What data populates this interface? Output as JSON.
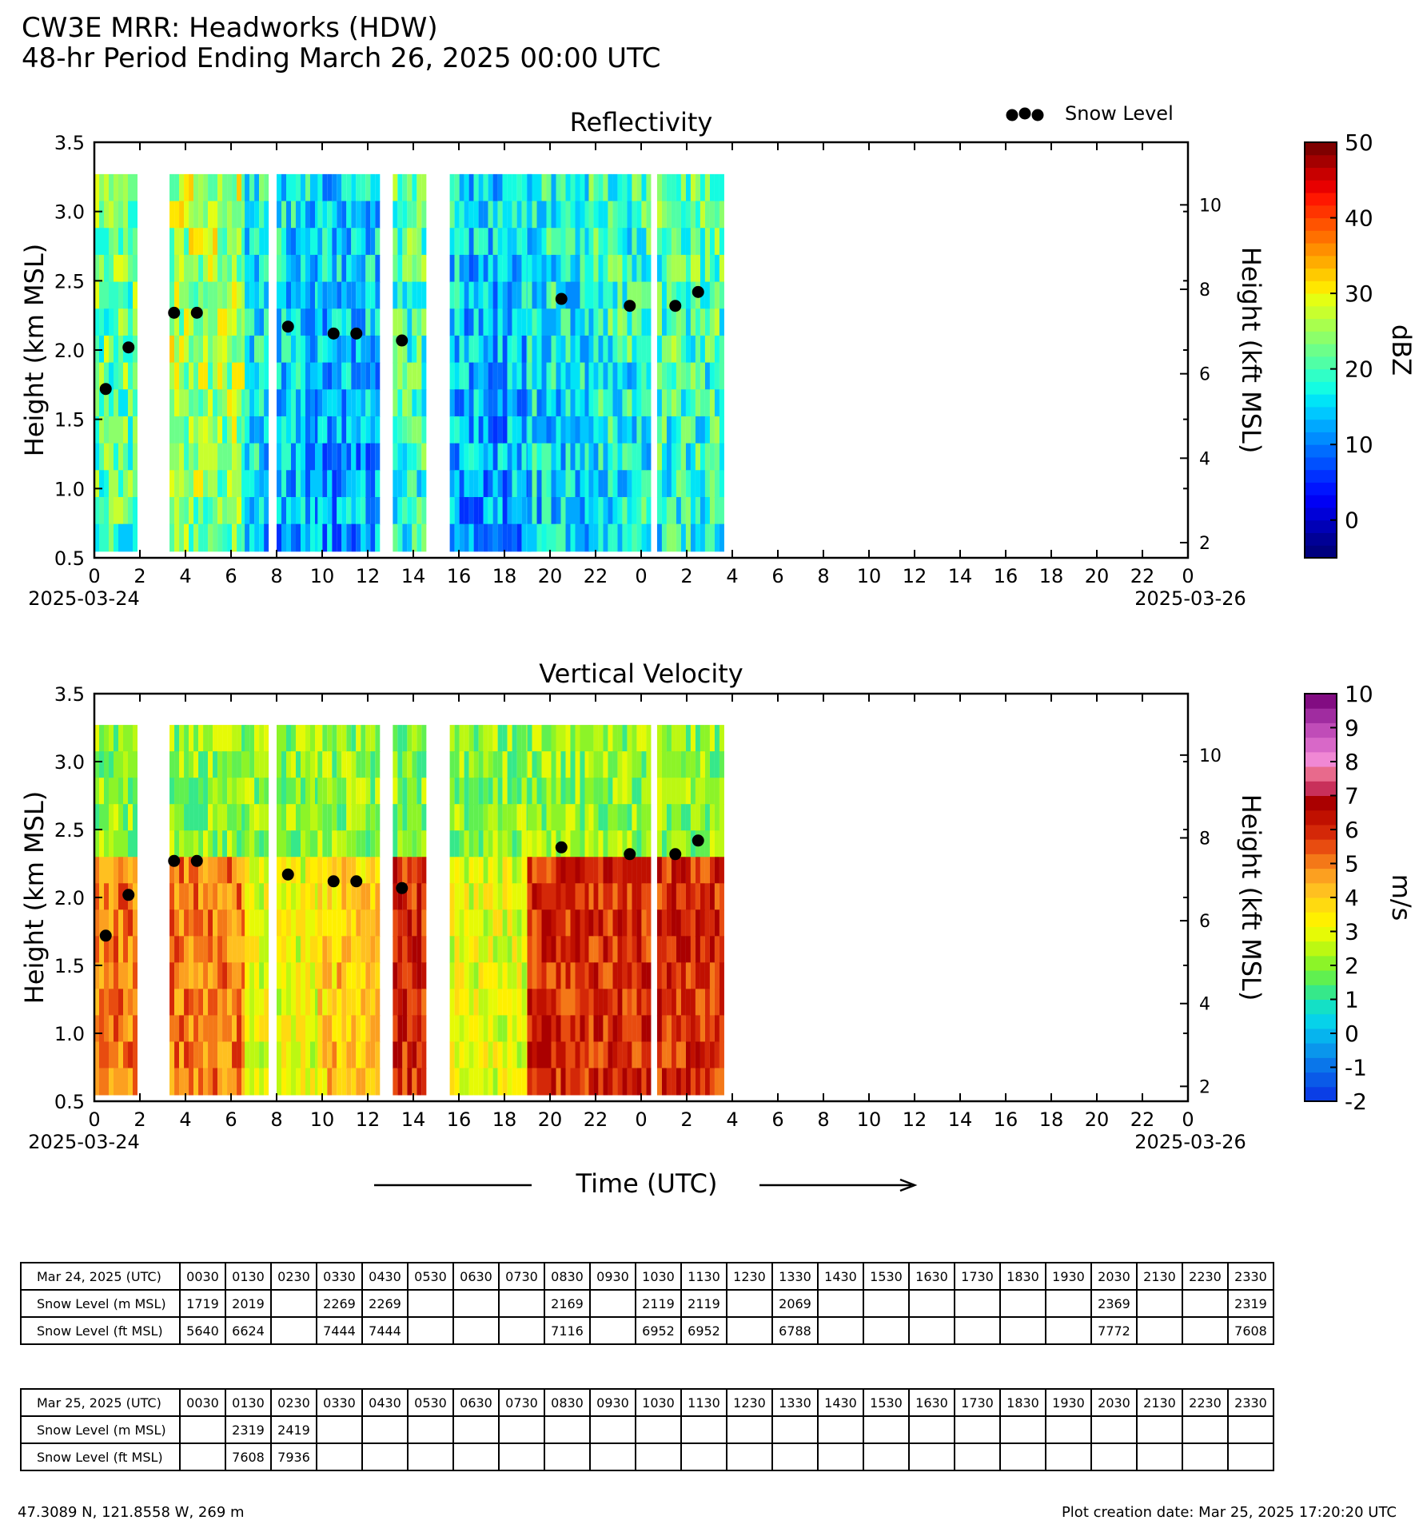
{
  "header": {
    "title_line1": "CW3E MRR: Headworks (HDW)",
    "title_line2": "48-hr Period Ending March 26, 2025 00:00 UTC"
  },
  "legend": {
    "snow_level_label": "Snow Level",
    "marker_color": "#000000"
  },
  "time_axis_label": "Time (UTC)",
  "chart_data": [
    {
      "type": "heatmap",
      "title": "Reflectivity",
      "ylabel": "Height (km MSL)",
      "ylabel_right": "Height (kft MSL)",
      "colorbar_label": "dBZ",
      "ylim": [
        0.5,
        3.5
      ],
      "y_ticks": [
        "0.5",
        "1.0",
        "1.5",
        "2.0",
        "2.5",
        "3.0",
        "3.5"
      ],
      "y_right_ticks": [
        "2",
        "4",
        "6",
        "8",
        "10"
      ],
      "x_tick_labels": [
        "0",
        "2",
        "4",
        "6",
        "8",
        "10",
        "12",
        "14",
        "16",
        "18",
        "20",
        "22",
        "0",
        "2",
        "4",
        "6",
        "8",
        "10",
        "12",
        "14",
        "16",
        "18",
        "20",
        "22",
        "0"
      ],
      "x_start_date": "2025-03-24",
      "x_end_date": "2025-03-26",
      "colorbar_ticks": [
        "0",
        "10",
        "20",
        "30",
        "40",
        "50"
      ],
      "colorbar_range": [
        -5,
        50
      ],
      "colorbar_colors": [
        "#00007f",
        "#000096",
        "#0000b6",
        "#0000d8",
        "#0000f5",
        "#0014ff",
        "#0030ff",
        "#0050ff",
        "#006cff",
        "#008cff",
        "#00a8ff",
        "#00c8ff",
        "#00e4f7",
        "#14fce2",
        "#30ffc7",
        "#50ffa6",
        "#6cff8a",
        "#8cff6a",
        "#a8ff4e",
        "#c8ff2e",
        "#e4ff13",
        "#ffe700",
        "#ffca00",
        "#ffac00",
        "#ff8f00",
        "#ff7000",
        "#ff5300",
        "#ff3400",
        "#ff1700",
        "#e80000",
        "#c80000",
        "#a40000",
        "#7f0000"
      ],
      "snow_level_km": [
        {
          "hour": 0.5,
          "value": 1.719
        },
        {
          "hour": 1.5,
          "value": 2.019
        },
        {
          "hour": 3.5,
          "value": 2.269
        },
        {
          "hour": 4.5,
          "value": 2.269
        },
        {
          "hour": 8.5,
          "value": 2.169
        },
        {
          "hour": 10.5,
          "value": 2.119
        },
        {
          "hour": 11.5,
          "value": 2.119
        },
        {
          "hour": 13.5,
          "value": 2.069
        },
        {
          "hour": 20.5,
          "value": 2.369
        },
        {
          "hour": 23.5,
          "value": 2.319
        },
        {
          "hour": 25.5,
          "value": 2.319
        },
        {
          "hour": 26.5,
          "value": 2.419
        }
      ],
      "data_segments": [
        {
          "start": 0.0,
          "end": 1.75,
          "level": 24
        },
        {
          "start": 3.3,
          "end": 6.6,
          "level": 27
        },
        {
          "start": 6.6,
          "end": 7.6,
          "level": 18
        },
        {
          "start": 8.0,
          "end": 9.8,
          "level": 16
        },
        {
          "start": 9.8,
          "end": 12.4,
          "level": 15
        },
        {
          "start": 13.1,
          "end": 14.4,
          "level": 22
        },
        {
          "start": 15.6,
          "end": 19.0,
          "level": 15
        },
        {
          "start": 19.0,
          "end": 21.7,
          "level": 18
        },
        {
          "start": 21.7,
          "end": 24.3,
          "level": 20
        },
        {
          "start": 24.7,
          "end": 27.5,
          "level": 22
        }
      ]
    },
    {
      "type": "heatmap",
      "title": "Vertical Velocity",
      "ylabel": "Height (km MSL)",
      "ylabel_right": "Height (kft MSL)",
      "colorbar_label": "m/s",
      "ylim": [
        0.5,
        3.5
      ],
      "y_ticks": [
        "0.5",
        "1.0",
        "1.5",
        "2.0",
        "2.5",
        "3.0",
        "3.5"
      ],
      "y_right_ticks": [
        "2",
        "4",
        "6",
        "8",
        "10"
      ],
      "x_tick_labels": [
        "0",
        "2",
        "4",
        "6",
        "8",
        "10",
        "12",
        "14",
        "16",
        "18",
        "20",
        "22",
        "0",
        "2",
        "4",
        "6",
        "8",
        "10",
        "12",
        "14",
        "16",
        "18",
        "20",
        "22",
        "0"
      ],
      "x_start_date": "2025-03-24",
      "x_end_date": "2025-03-26",
      "colorbar_ticks": [
        "-2",
        "-1",
        "0",
        "1",
        "2",
        "3",
        "4",
        "5",
        "6",
        "7",
        "8",
        "9",
        "10"
      ],
      "colorbar_range": [
        -2,
        10
      ],
      "colorbar_colors": [
        "#0a3ee6",
        "#0a5ae8",
        "#0a76ea",
        "#0a96ec",
        "#06b4ee",
        "#06d2ea",
        "#14e0c6",
        "#36e88a",
        "#60f050",
        "#8cf428",
        "#bcf812",
        "#e6fa06",
        "#fff000",
        "#ffda10",
        "#ffc020",
        "#fca020",
        "#f47818",
        "#e84c10",
        "#d42808",
        "#c01000",
        "#aa0000",
        "#c8305a",
        "#e86a8c",
        "#f088d4",
        "#d868c8",
        "#c04cb8",
        "#a02ca0",
        "#820c82"
      ],
      "snow_level_km": [
        {
          "hour": 0.5,
          "value": 1.719
        },
        {
          "hour": 1.5,
          "value": 2.019
        },
        {
          "hour": 3.5,
          "value": 2.269
        },
        {
          "hour": 4.5,
          "value": 2.269
        },
        {
          "hour": 8.5,
          "value": 2.169
        },
        {
          "hour": 10.5,
          "value": 2.119
        },
        {
          "hour": 11.5,
          "value": 2.119
        },
        {
          "hour": 13.5,
          "value": 2.069
        },
        {
          "hour": 20.5,
          "value": 2.369
        },
        {
          "hour": 23.5,
          "value": 2.319
        },
        {
          "hour": 25.5,
          "value": 2.319
        },
        {
          "hour": 26.5,
          "value": 2.419
        }
      ],
      "data_segments": [
        {
          "start": 0.0,
          "end": 1.75,
          "level": 5
        },
        {
          "start": 3.3,
          "end": 6.6,
          "level": 5
        },
        {
          "start": 6.6,
          "end": 7.6,
          "level": 3
        },
        {
          "start": 8.0,
          "end": 9.8,
          "level": 3
        },
        {
          "start": 9.8,
          "end": 12.4,
          "level": 4
        },
        {
          "start": 13.1,
          "end": 14.4,
          "level": 6
        },
        {
          "start": 15.6,
          "end": 19.0,
          "level": 3
        },
        {
          "start": 19.0,
          "end": 21.7,
          "level": 6
        },
        {
          "start": 21.7,
          "end": 24.3,
          "level": 6
        },
        {
          "start": 24.7,
          "end": 27.5,
          "level": 6
        }
      ]
    }
  ],
  "table_day1": {
    "date": "Mar 24, 2025 (UTC)",
    "times": [
      "0030",
      "0130",
      "0230",
      "0330",
      "0430",
      "0530",
      "0630",
      "0730",
      "0830",
      "0930",
      "1030",
      "1130",
      "1230",
      "1330",
      "1430",
      "1530",
      "1630",
      "1730",
      "1830",
      "1930",
      "2030",
      "2130",
      "2230",
      "2330"
    ],
    "row_m_label": "Snow Level (m MSL)",
    "row_m": [
      "1719",
      "2019",
      "",
      "2269",
      "2269",
      "",
      "",
      "",
      "2169",
      "",
      "2119",
      "2119",
      "",
      "2069",
      "",
      "",
      "",
      "",
      "",
      "",
      "2369",
      "",
      "",
      "2319"
    ],
    "row_ft_label": "Snow Level (ft MSL)",
    "row_ft": [
      "5640",
      "6624",
      "",
      "7444",
      "7444",
      "",
      "",
      "",
      "7116",
      "",
      "6952",
      "6952",
      "",
      "6788",
      "",
      "",
      "",
      "",
      "",
      "",
      "7772",
      "",
      "",
      "7608"
    ]
  },
  "table_day2": {
    "date": "Mar 25, 2025 (UTC)",
    "times": [
      "0030",
      "0130",
      "0230",
      "0330",
      "0430",
      "0530",
      "0630",
      "0730",
      "0830",
      "0930",
      "1030",
      "1130",
      "1230",
      "1330",
      "1430",
      "1530",
      "1630",
      "1730",
      "1830",
      "1930",
      "2030",
      "2130",
      "2230",
      "2330"
    ],
    "row_m_label": "Snow Level (m MSL)",
    "row_m": [
      "",
      "2319",
      "2419",
      "",
      "",
      "",
      "",
      "",
      "",
      "",
      "",
      "",
      "",
      "",
      "",
      "",
      "",
      "",
      "",
      "",
      "",
      "",
      "",
      ""
    ],
    "row_ft_label": "Snow Level (ft MSL)",
    "row_ft": [
      "",
      "7608",
      "7936",
      "",
      "",
      "",
      "",
      "",
      "",
      "",
      "",
      "",
      "",
      "",
      "",
      "",
      "",
      "",
      "",
      "",
      "",
      "",
      "",
      ""
    ]
  },
  "footer": {
    "location": "47.3089 N, 121.8558 W, 269 m",
    "created": "Plot creation date: Mar 25, 2025 17:20:20 UTC"
  }
}
